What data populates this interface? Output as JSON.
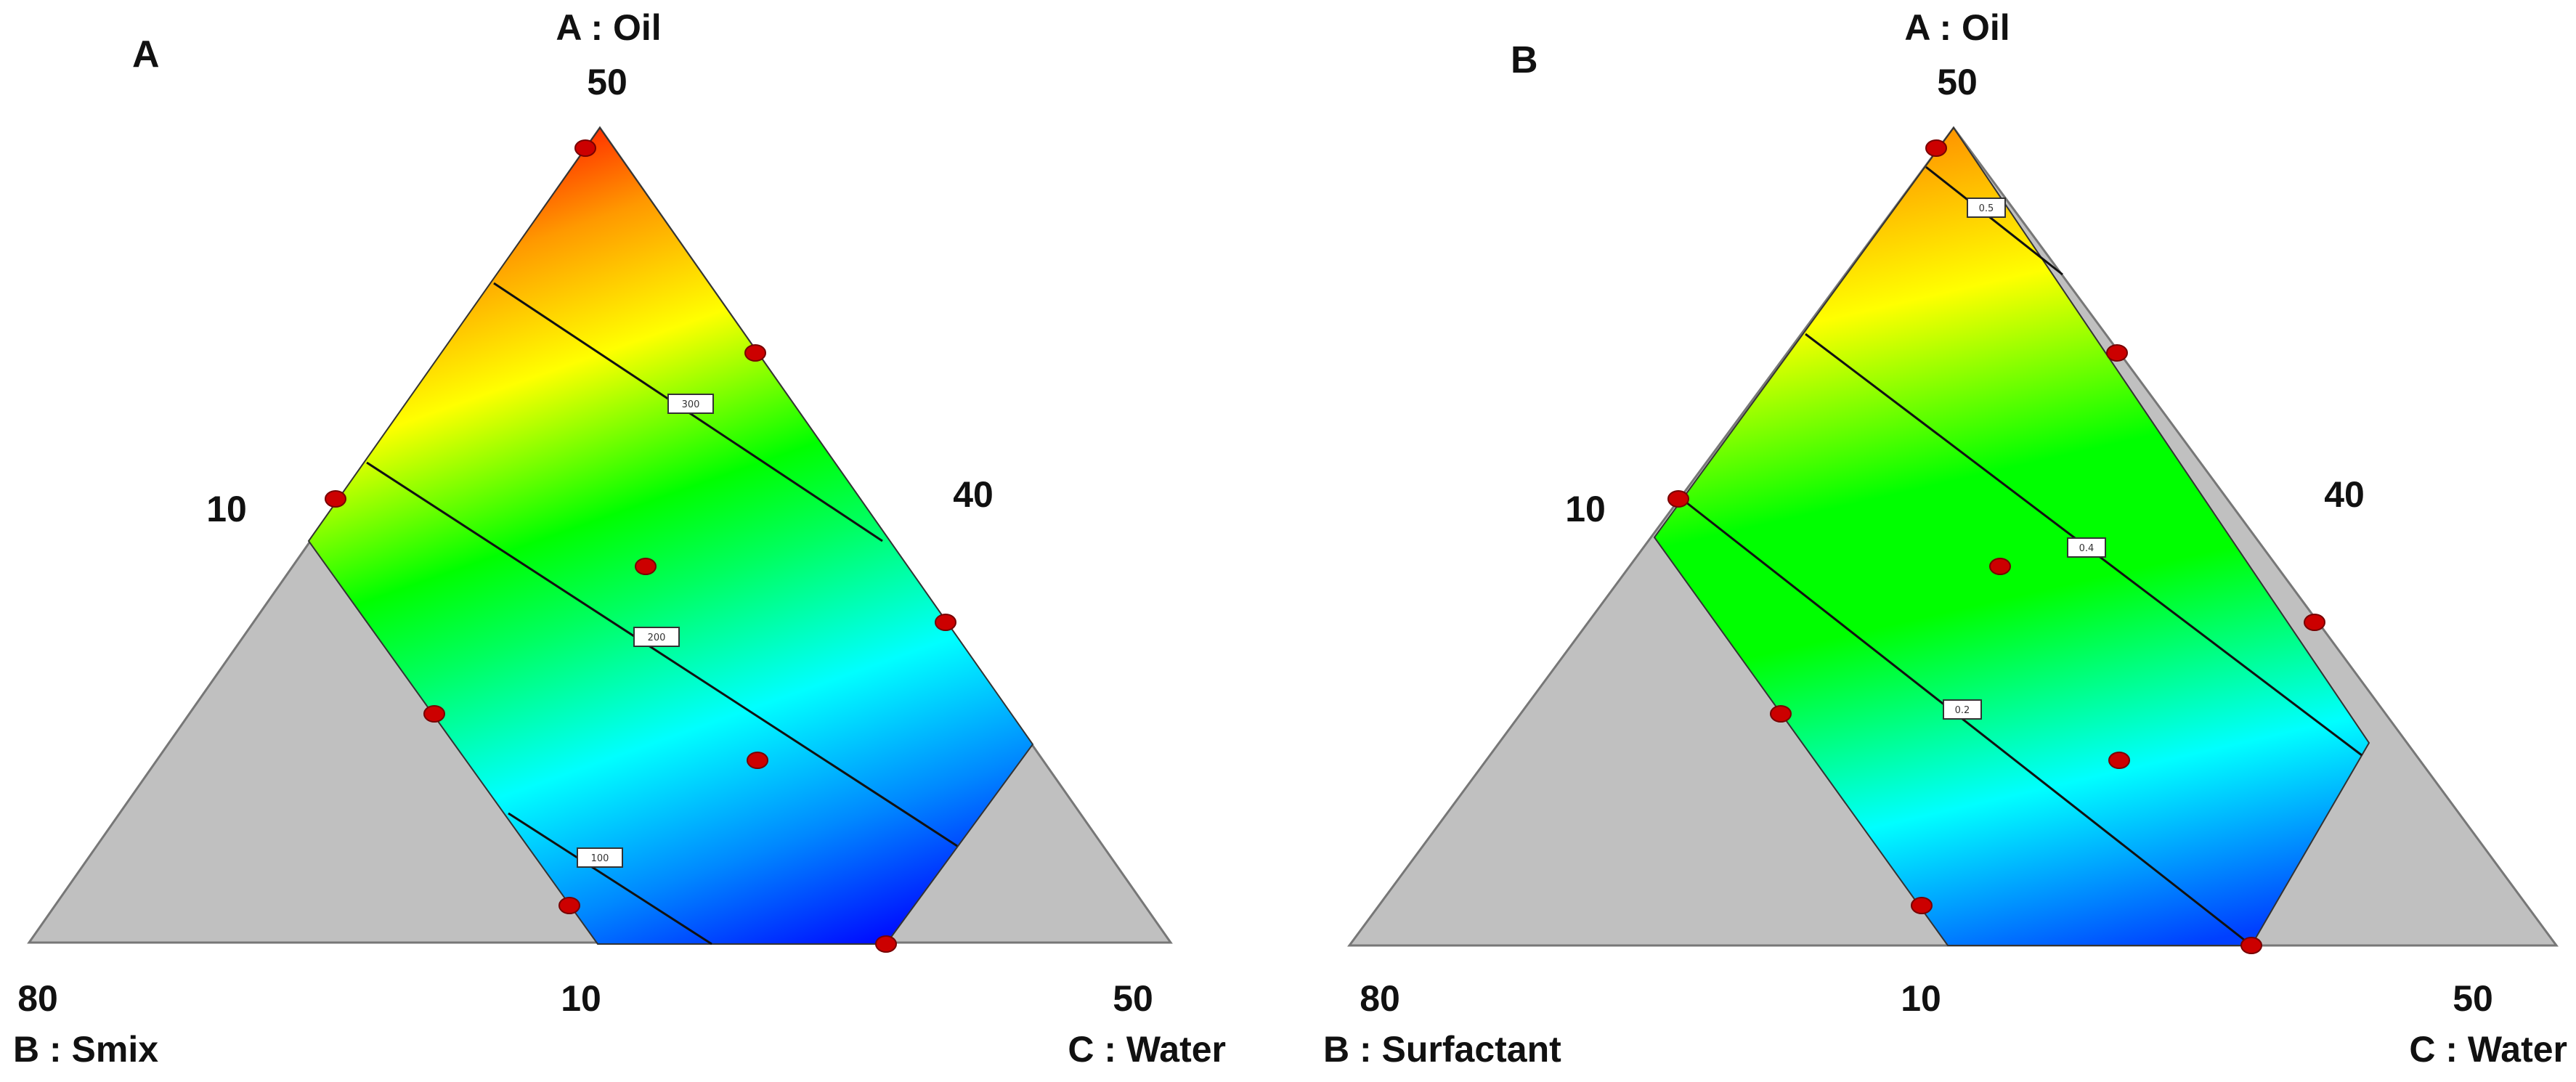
{
  "chart_data": [
    {
      "type": "ternary-contour",
      "panel_label": "A",
      "axes": {
        "A": {
          "name": "A : Oil",
          "max": "50"
        },
        "B": {
          "name": "B : Smix",
          "max": "80"
        },
        "C": {
          "name": "C : Water",
          "max": "50"
        }
      },
      "edge_ticks": {
        "left": "10",
        "right": "40",
        "bottom": "10"
      },
      "contours": [
        {
          "label": "300"
        },
        {
          "label": "200"
        },
        {
          "label": "100"
        }
      ],
      "design_points": 9,
      "colorscale": [
        "#0000ff",
        "#00ffff",
        "#00ff00",
        "#ffff00",
        "#ff8000",
        "#ff0000"
      ]
    },
    {
      "type": "ternary-contour",
      "panel_label": "B",
      "axes": {
        "A": {
          "name": "A : Oil",
          "max": "50"
        },
        "B": {
          "name": "B : Surfactant",
          "max": "80"
        },
        "C": {
          "name": "C : Water",
          "max": "50"
        }
      },
      "edge_ticks": {
        "left": "10",
        "right": "40",
        "bottom": "10"
      },
      "contours": [
        {
          "label": "0.5"
        },
        {
          "label": "0.4"
        },
        {
          "label": "0.2"
        }
      ],
      "design_points": 9,
      "colorscale": [
        "#0000ff",
        "#00ffff",
        "#00ff00",
        "#ffff00",
        "#ff8000",
        "#ff0000"
      ]
    }
  ]
}
